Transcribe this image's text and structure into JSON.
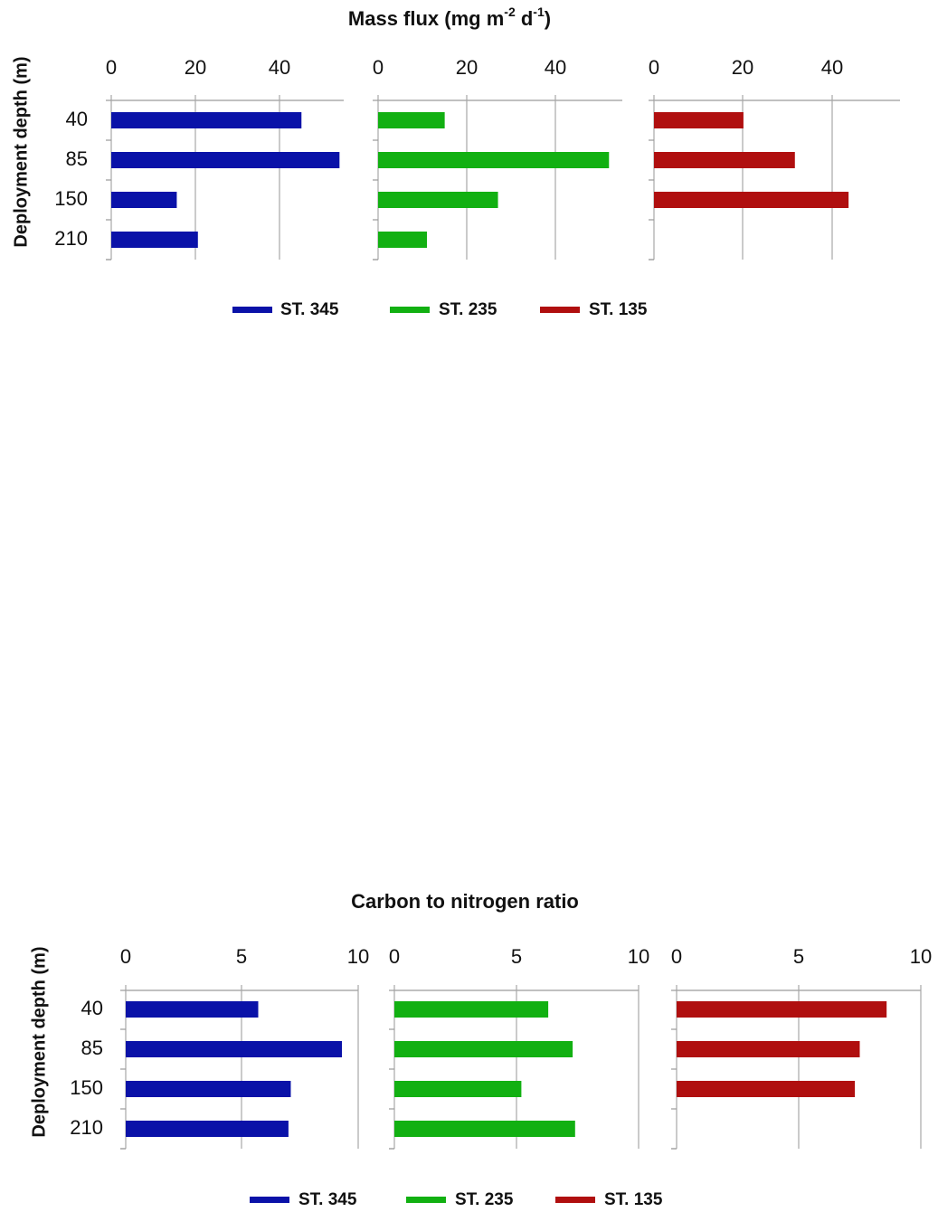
{
  "chart_data": [
    {
      "type": "bar",
      "orientation": "horizontal",
      "title": "Mass flux (mg m",
      "title_sup1": "-2",
      "title_mid": " d",
      "title_sup2": "-1",
      "title_end": ")",
      "ylabel": "Deployment depth (m)",
      "categories": [
        "40",
        "85",
        "150",
        "210"
      ],
      "xlim": [
        0,
        55
      ],
      "xticks": [
        "0",
        "20",
        "40"
      ],
      "xtick_values": [
        0,
        20,
        40
      ],
      "series": [
        {
          "name": "ST. 345",
          "color": "#0a12a8",
          "values": [
            45,
            54,
            15.5,
            20.5
          ]
        },
        {
          "name": "ST. 235",
          "color": "#12b012",
          "values": [
            15,
            52,
            27,
            11
          ]
        },
        {
          "name": "ST. 135",
          "color": "#b00f0f",
          "values": [
            20,
            31.5,
            43.5,
            null
          ]
        }
      ],
      "legend": "bottom",
      "grid": "vertical"
    },
    {
      "type": "bar",
      "orientation": "horizontal",
      "title": "Carbon to nitrogen ratio",
      "ylabel": "Deployment depth (m)",
      "categories": [
        "40",
        "85",
        "150",
        "210"
      ],
      "xlim": [
        0,
        10
      ],
      "xticks": [
        "0",
        "5",
        "10"
      ],
      "xtick_values": [
        0,
        5,
        10
      ],
      "series": [
        {
          "name": "ST. 345",
          "color": "#0a12a8",
          "values": [
            5.7,
            9.3,
            7.1,
            7.0
          ]
        },
        {
          "name": "ST. 235",
          "color": "#12b012",
          "values": [
            6.3,
            7.3,
            5.2,
            7.4
          ]
        },
        {
          "name": "ST. 135",
          "color": "#b00f0f",
          "values": [
            8.6,
            7.5,
            7.3,
            null
          ]
        }
      ],
      "legend": "bottom",
      "grid": "vertical"
    }
  ]
}
